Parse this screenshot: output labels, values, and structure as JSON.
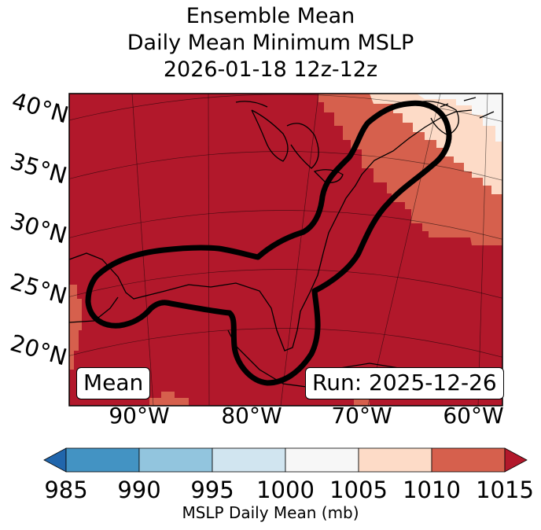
{
  "title": {
    "line1": "Ensemble Mean",
    "line2": "Daily Mean Minimum MSLP",
    "line3": "2026-01-18 12z-12z"
  },
  "map": {
    "lat_labels": [
      "40°N",
      "35°N",
      "30°N",
      "25°N",
      "20°N"
    ],
    "lon_labels": [
      "90°W",
      "80°W",
      "70°W",
      "60°W"
    ],
    "mean_label": "Mean",
    "run_label": "Run: 2025-12-26",
    "contour_description": "thick black probability contour"
  },
  "colorbar": {
    "ticks": [
      "985",
      "990",
      "995",
      "1000",
      "1005",
      "1010",
      "1015"
    ],
    "label": "MSLP Daily Mean (mb)",
    "bins": [
      {
        "range": "<985",
        "color": "#2166ac"
      },
      {
        "range": "985-990",
        "color": "#4393c3"
      },
      {
        "range": "990-995",
        "color": "#92c5de"
      },
      {
        "range": "995-1000",
        "color": "#d1e5f0"
      },
      {
        "range": "1000-1005",
        "color": "#f7f7f7"
      },
      {
        "range": "1005-1010",
        "color": "#fddbc7"
      },
      {
        "range": "1010-1015",
        "color": "#d6604d"
      },
      {
        "range": ">1015",
        "color": "#b2182b"
      }
    ]
  },
  "colors": {
    "high": "#b2182b",
    "mid_high": "#d6604d",
    "light": "#fddbc7",
    "white": "#f7f7f7"
  }
}
